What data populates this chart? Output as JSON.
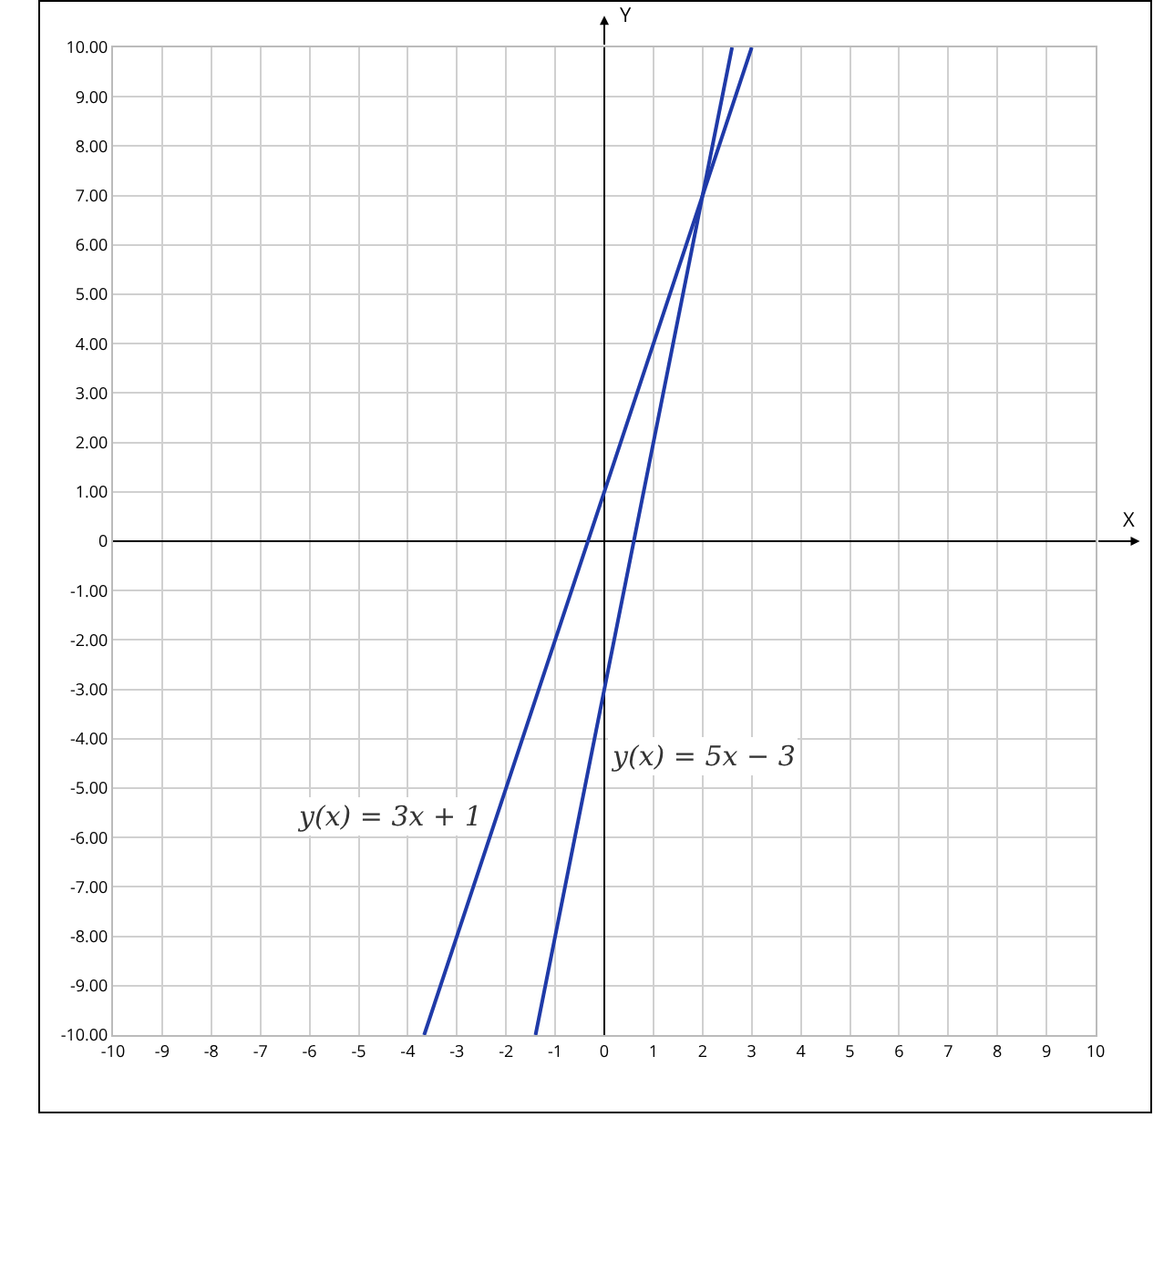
{
  "chart_data": {
    "type": "line",
    "xlabel": "X",
    "ylabel": "Y",
    "series": [
      {
        "color": "#1f3aa8",
        "x": [
          -3.667,
          3
        ],
        "values": [
          -10,
          10
        ]
      },
      {
        "color": "#1f3aa8",
        "x": [
          -1.4,
          2.6
        ],
        "values": [
          -10,
          10
        ]
      }
    ],
    "annotations": [
      "y(x) = 3x + 1",
      "y(x) = 5x − 3"
    ],
    "xlim": [
      -10,
      10
    ],
    "xticks": [
      -10,
      -9,
      -8,
      -7,
      -6,
      -5,
      -4,
      -3,
      -2,
      -1,
      0,
      1,
      2,
      3,
      4,
      5,
      6,
      7,
      8,
      9,
      10
    ],
    "ylim": [
      -10,
      10
    ],
    "yticks": [
      {
        "value": -10,
        "label": "-10.00"
      },
      {
        "value": -9,
        "label": "-9.00"
      },
      {
        "value": -8,
        "label": "-8.00"
      },
      {
        "value": -7,
        "label": "-7.00"
      },
      {
        "value": -6,
        "label": "-6.00"
      },
      {
        "value": -5,
        "label": "-5.00"
      },
      {
        "value": -4,
        "label": "-4.00"
      },
      {
        "value": -3,
        "label": "-3.00"
      },
      {
        "value": -2,
        "label": "-2.00"
      },
      {
        "value": -1,
        "label": "-1.00"
      },
      0,
      {
        "value": 1,
        "label": "1.00"
      },
      {
        "value": 2,
        "label": "2.00"
      },
      {
        "value": 3,
        "label": "3.00"
      },
      {
        "value": 4,
        "label": "4.00"
      },
      {
        "value": 5,
        "label": "5.00"
      },
      {
        "value": 6,
        "label": "6.00"
      },
      {
        "value": 7,
        "label": "7.00"
      },
      {
        "value": 8,
        "label": "8.00"
      },
      {
        "value": 9,
        "label": "9.00"
      },
      {
        "value": 10,
        "label": "10.00"
      }
    ],
    "grid": true,
    "marker": "none",
    "line_style": "solid"
  }
}
